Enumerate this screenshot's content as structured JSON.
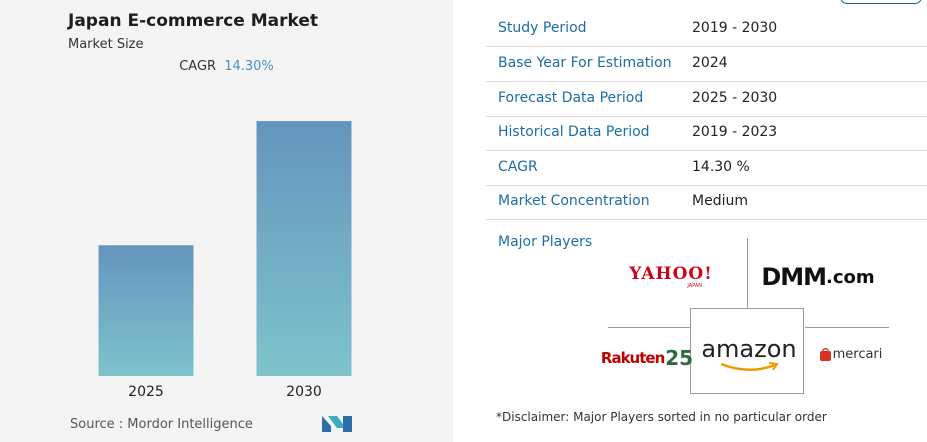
{
  "chart_data": {
    "type": "bar",
    "title": "Japan E-commerce Market",
    "subtitle": "Market Size",
    "cagr_label": "CAGR",
    "cagr_value": "14.30%",
    "categories": [
      "2025",
      "2030"
    ],
    "values": [
      1.0,
      1.95
    ],
    "ylim": [
      0,
      2.05
    ],
    "grid": false,
    "bar_color_top": "#6495bd",
    "bar_color_bottom": "#7ec3cc"
  },
  "source": "Source :  Mordor Intelligence",
  "info_table": [
    {
      "label": "Study Period",
      "value": "2019 - 2030"
    },
    {
      "label": "Base Year For Estimation",
      "value": "2024"
    },
    {
      "label": "Forecast Data Period",
      "value": "2025 - 2030"
    },
    {
      "label": "Historical Data Period",
      "value": "2019 - 2023"
    },
    {
      "label": "CAGR",
      "value": "14.30 %"
    },
    {
      "label": "Market Concentration",
      "value": "Medium"
    }
  ],
  "major_players_label": "Major Players",
  "players": {
    "yahoo": "YAHOO!",
    "yahoo_sub": "JAPAN",
    "dmm": "DMM",
    "dmm_suffix": ".com",
    "amazon": "amazon",
    "rakuten": "Rakuten",
    "rakuten_num": "25",
    "mercari": "mercari"
  },
  "disclaimer": "*Disclaimer: Major Players sorted in no particular order",
  "colors": {
    "label_blue": "#1c6ea6",
    "cagr_blue": "#4a90c2"
  }
}
